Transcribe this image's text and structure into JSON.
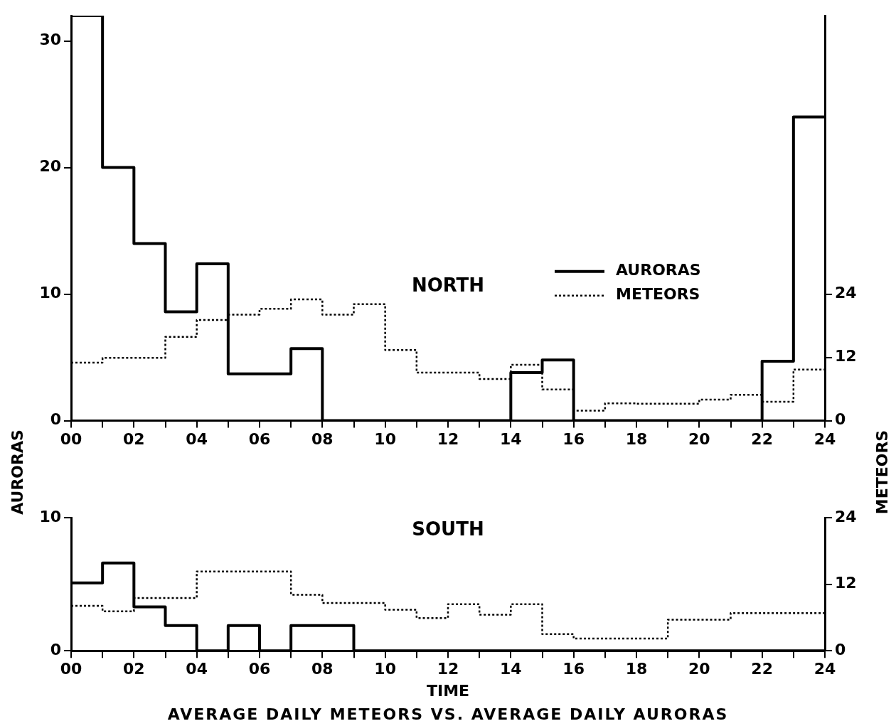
{
  "chart_data": [
    {
      "type": "step",
      "title": "NORTH",
      "x": [
        0,
        1,
        2,
        3,
        4,
        5,
        6,
        7,
        8,
        9,
        10,
        11,
        12,
        13,
        14,
        15,
        16,
        17,
        18,
        19,
        20,
        21,
        22,
        23,
        24
      ],
      "series": [
        {
          "name": "AURORAS",
          "color": "#000000",
          "line_style": "solid",
          "values": [
            32,
            20,
            14,
            8.6,
            12.4,
            3.7,
            3.7,
            5.7,
            0,
            0,
            0,
            0,
            0,
            0,
            3.8,
            4.8,
            0,
            0,
            0,
            0,
            0,
            0,
            4.7,
            24,
            24
          ]
        },
        {
          "name": "METEORS",
          "color": "#000000",
          "line_style": "dotted",
          "axis": "y2",
          "values": [
            11,
            11.9,
            11.9,
            15.9,
            19.1,
            20.1,
            21.2,
            23,
            20.1,
            22.1,
            13.4,
            9.1,
            9.1,
            7.9,
            10.6,
            5.9,
            1.9,
            3.3,
            3.2,
            3.2,
            4,
            4.9,
            3.6,
            9.7,
            9.7
          ]
        }
      ],
      "xlim": [
        0,
        24
      ],
      "xticks": [
        {
          "value": 0,
          "label": "00"
        },
        {
          "value": 1,
          "label": null
        },
        {
          "value": 2,
          "label": "02"
        },
        {
          "value": 3,
          "label": null
        },
        {
          "value": 4,
          "label": "04"
        },
        {
          "value": 5,
          "label": null
        },
        {
          "value": 6,
          "label": "06"
        },
        {
          "value": 7,
          "label": null
        },
        {
          "value": 8,
          "label": "08"
        },
        {
          "value": 9,
          "label": null
        },
        {
          "value": 10,
          "label": "10"
        },
        {
          "value": 11,
          "label": null
        },
        {
          "value": 12,
          "label": "12"
        },
        {
          "value": 13,
          "label": null
        },
        {
          "value": 14,
          "label": "14"
        },
        {
          "value": 15,
          "label": null
        },
        {
          "value": 16,
          "label": "16"
        },
        {
          "value": 17,
          "label": null
        },
        {
          "value": 18,
          "label": "18"
        },
        {
          "value": 19,
          "label": null
        },
        {
          "value": 20,
          "label": "20"
        },
        {
          "value": 21,
          "label": null
        },
        {
          "value": 22,
          "label": "22"
        },
        {
          "value": 23,
          "label": null
        },
        {
          "value": 24,
          "label": "24"
        }
      ],
      "ylim": [
        0,
        32
      ],
      "yticks": [
        0,
        10,
        20,
        30
      ],
      "y2lim": [
        0,
        76.8
      ],
      "y2ticks": [
        0,
        12,
        24
      ],
      "grid": false,
      "legend": "right"
    },
    {
      "type": "step",
      "title": "SOUTH",
      "x": [
        0,
        1,
        2,
        3,
        4,
        5,
        6,
        7,
        8,
        9,
        10,
        11,
        12,
        13,
        14,
        15,
        16,
        17,
        18,
        19,
        20,
        21,
        22,
        23,
        24
      ],
      "series": [
        {
          "color": "#000000",
          "line_style": "solid",
          "values": [
            5.1,
            6.6,
            3.3,
            1.9,
            0,
            1.9,
            0,
            1.9,
            1.9,
            0,
            0,
            0,
            0,
            0,
            0,
            0,
            0,
            0,
            0,
            0,
            0,
            0,
            0,
            0,
            0
          ]
        },
        {
          "color": "#000000",
          "line_style": "dotted",
          "axis": "y2",
          "values": [
            8.1,
            7.1,
            9.5,
            9.5,
            14.3,
            14.3,
            14.3,
            10.1,
            8.6,
            8.6,
            7.4,
            5.9,
            8.4,
            6.5,
            8.4,
            3,
            2.2,
            2.2,
            2.2,
            5.6,
            5.6,
            6.8,
            6.8,
            6.8,
            6.8
          ]
        }
      ],
      "xlabel": "TIME",
      "ylabel": "AURORAS",
      "y2label": "METEORS",
      "annotations": [
        "AVERAGE DAILY METEORS VS. AVERAGE DAILY AURORAS"
      ],
      "xlim": [
        0,
        24
      ],
      "xticks": [
        {
          "value": 0,
          "label": "00"
        },
        {
          "value": 1,
          "label": null
        },
        {
          "value": 2,
          "label": "02"
        },
        {
          "value": 3,
          "label": null
        },
        {
          "value": 4,
          "label": "04"
        },
        {
          "value": 5,
          "label": null
        },
        {
          "value": 6,
          "label": "06"
        },
        {
          "value": 7,
          "label": null
        },
        {
          "value": 8,
          "label": "08"
        },
        {
          "value": 9,
          "label": null
        },
        {
          "value": 10,
          "label": "10"
        },
        {
          "value": 11,
          "label": null
        },
        {
          "value": 12,
          "label": "12"
        },
        {
          "value": 13,
          "label": null
        },
        {
          "value": 14,
          "label": "14"
        },
        {
          "value": 15,
          "label": null
        },
        {
          "value": 16,
          "label": "16"
        },
        {
          "value": 17,
          "label": null
        },
        {
          "value": 18,
          "label": "18"
        },
        {
          "value": 19,
          "label": null
        },
        {
          "value": 20,
          "label": "20"
        },
        {
          "value": 21,
          "label": null
        },
        {
          "value": 22,
          "label": "22"
        },
        {
          "value": 23,
          "label": null
        },
        {
          "value": 24,
          "label": "24"
        }
      ],
      "ylim": [
        0,
        10
      ],
      "yticks": [
        0,
        10
      ],
      "y2lim": [
        0,
        24
      ],
      "y2ticks": [
        0,
        12,
        24
      ],
      "grid": false,
      "legend": false
    }
  ]
}
